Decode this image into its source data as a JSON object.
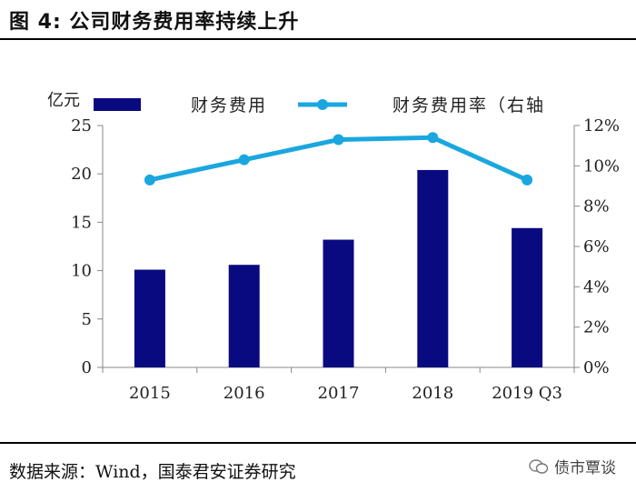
{
  "header": {
    "title": "图 4:  公司财务费用率持续上升"
  },
  "footer": {
    "source": "数据来源：Wind，国泰君安证券研究",
    "watermark": "债市覃谈"
  },
  "chart_data": {
    "type": "bar+line",
    "categories": [
      "2015",
      "2016",
      "2017",
      "2018",
      "2019 Q3"
    ],
    "left_axis": {
      "unit": "亿元",
      "ylim": [
        0,
        25
      ],
      "ticks": [
        "0",
        "5",
        "10",
        "15",
        "20",
        "25"
      ]
    },
    "right_axis": {
      "ylim": [
        0,
        12
      ],
      "ticks": [
        "0%",
        "2%",
        "4%",
        "6%",
        "8%",
        "10%",
        "12%"
      ]
    },
    "series": [
      {
        "name": "财务费用",
        "kind": "bar",
        "axis": "left",
        "color": "#0a0a80",
        "values": [
          10.1,
          10.6,
          13.2,
          20.4,
          14.4
        ]
      },
      {
        "name": "财务费用率（右轴",
        "kind": "line",
        "axis": "right",
        "color": "#1aa7df",
        "values": [
          9.3,
          10.3,
          11.3,
          11.4,
          9.3
        ]
      }
    ],
    "grid": false,
    "legend": "top"
  }
}
